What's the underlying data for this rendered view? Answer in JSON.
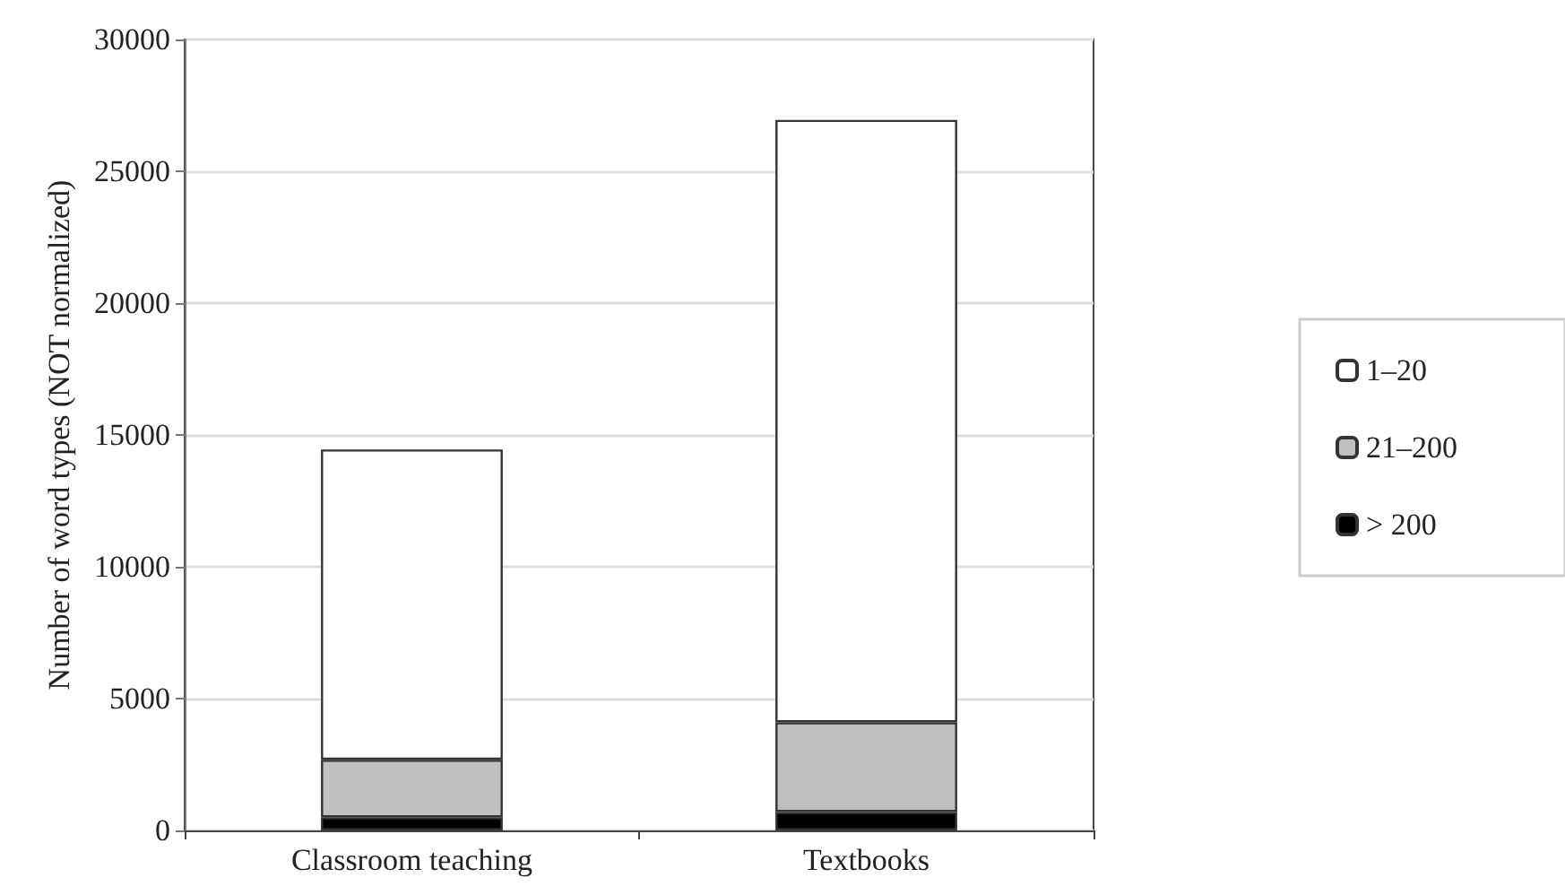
{
  "chart_data": {
    "type": "bar",
    "stacked": true,
    "ylabel": "Number of word types (NOT normalized)",
    "categories": [
      "Classroom teaching",
      "Textbooks"
    ],
    "series": [
      {
        "name": "> 200",
        "color": "#000000",
        "values": [
          500,
          700
        ]
      },
      {
        "name": "21–200",
        "color": "#c0c0c0",
        "values": [
          2180,
          3400
        ]
      },
      {
        "name": "1–20",
        "color": "#ffffff",
        "values": [
          11770,
          22850
        ]
      }
    ],
    "ylim": [
      0,
      30000
    ],
    "yticks": [
      0,
      5000,
      10000,
      15000,
      20000,
      25000,
      30000
    ],
    "grid": "y",
    "legend": "right"
  }
}
